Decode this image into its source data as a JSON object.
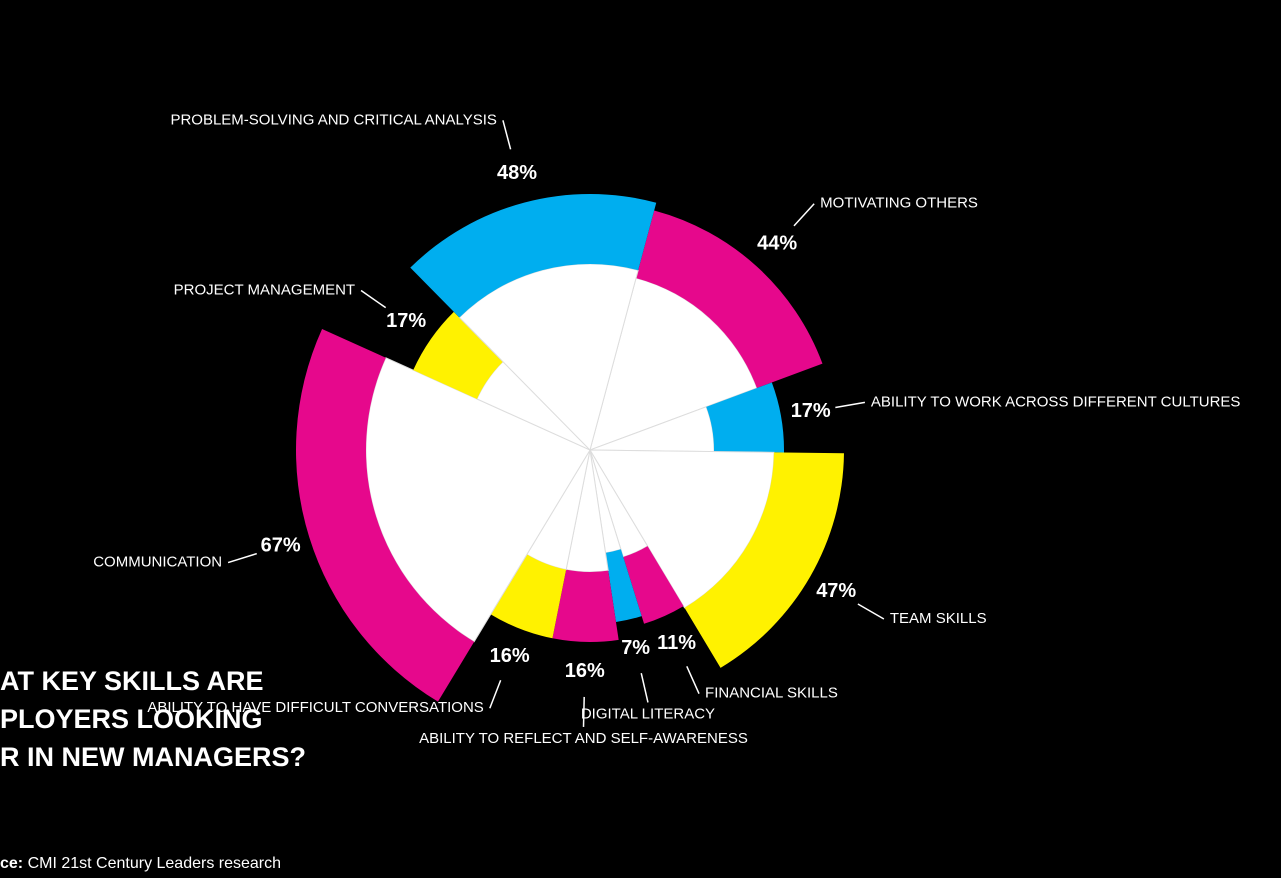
{
  "chart_data": {
    "type": "radial",
    "title_lines": [
      "AT KEY SKILLS ARE",
      "PLOYERS LOOKING",
      "R IN NEW MANAGERS?"
    ],
    "source_label": "ce:",
    "source": "CMI 21st Century Leaders research",
    "categories": [
      "MOTIVATING OTHERS",
      "ABILITY TO WORK ACROSS DIFFERENT CULTURES",
      "TEAM SKILLS",
      "FINANCIAL SKILLS",
      "DIGITAL LITERACY",
      "ABILITY TO REFLECT AND SELF-AWARENESS",
      "ABILITY TO HAVE DIFFICULT CONVERSATIONS",
      "COMMUNICATION",
      "PROJECT MANAGEMENT",
      "PROBLEM-SOLVING AND CRITICAL ANALYSIS"
    ],
    "values": [
      44,
      17,
      47,
      11,
      7,
      16,
      16,
      67,
      17,
      48
    ],
    "value_labels": [
      "44%",
      "17%",
      "47%",
      "11%",
      "7%",
      "16%",
      "16%",
      "67%",
      "17%",
      "48%"
    ],
    "colors": [
      "#e6088c",
      "#00aeef",
      "#fff200",
      "#e6088c",
      "#00aeef",
      "#e6088c",
      "#fff200",
      "#e6088c",
      "#fff200",
      "#00aeef"
    ]
  }
}
